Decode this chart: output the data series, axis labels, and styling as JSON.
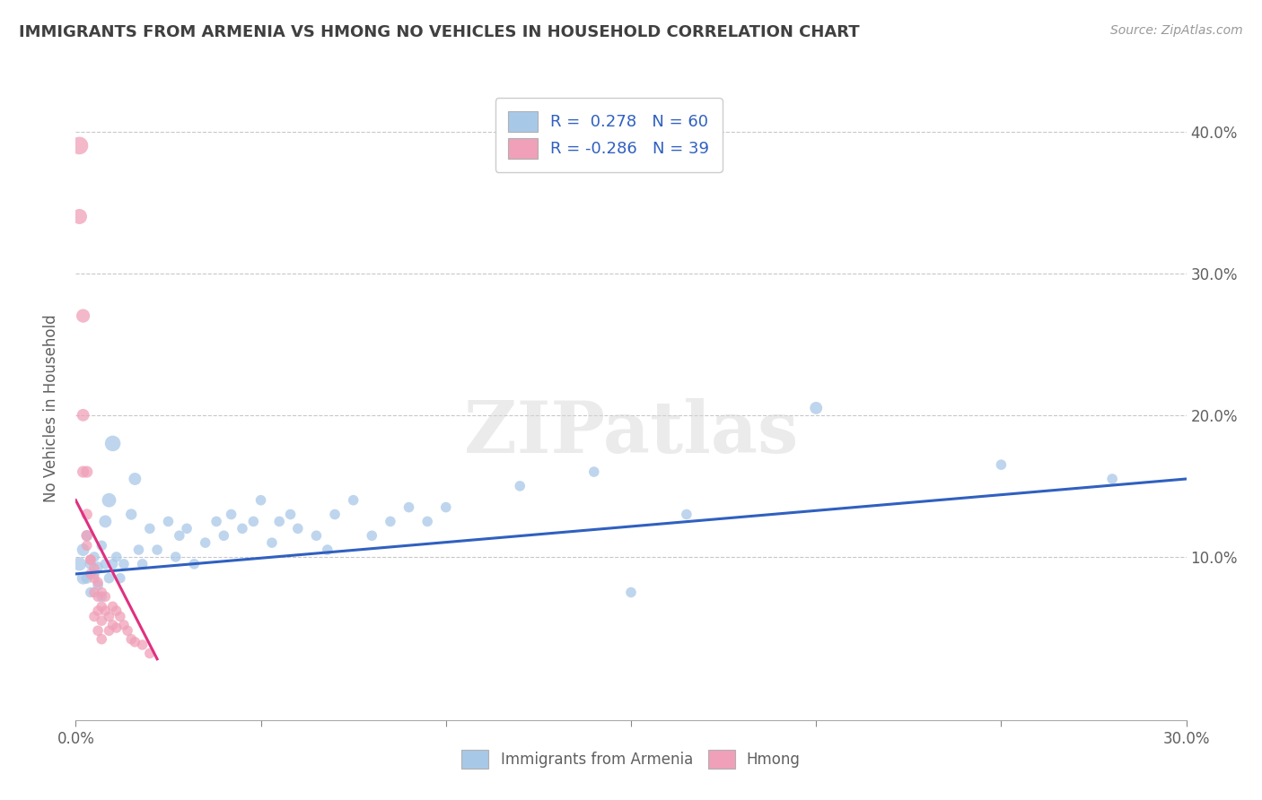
{
  "title": "IMMIGRANTS FROM ARMENIA VS HMONG NO VEHICLES IN HOUSEHOLD CORRELATION CHART",
  "source": "Source: ZipAtlas.com",
  "ylabel": "No Vehicles in Household",
  "legend_blue_label": "Immigrants from Armenia",
  "legend_pink_label": "Hmong",
  "blue_R": 0.278,
  "blue_N": 60,
  "pink_R": -0.286,
  "pink_N": 39,
  "xlim": [
    0.0,
    0.3
  ],
  "ylim": [
    -0.015,
    0.425
  ],
  "blue_scatter": [
    [
      0.001,
      0.095
    ],
    [
      0.002,
      0.085
    ],
    [
      0.002,
      0.105
    ],
    [
      0.003,
      0.115
    ],
    [
      0.003,
      0.085
    ],
    [
      0.004,
      0.095
    ],
    [
      0.004,
      0.075
    ],
    [
      0.005,
      0.088
    ],
    [
      0.005,
      0.1
    ],
    [
      0.006,
      0.093
    ],
    [
      0.006,
      0.08
    ],
    [
      0.007,
      0.108
    ],
    [
      0.007,
      0.072
    ],
    [
      0.008,
      0.095
    ],
    [
      0.008,
      0.125
    ],
    [
      0.009,
      0.085
    ],
    [
      0.009,
      0.14
    ],
    [
      0.01,
      0.095
    ],
    [
      0.01,
      0.18
    ],
    [
      0.011,
      0.1
    ],
    [
      0.012,
      0.085
    ],
    [
      0.013,
      0.095
    ],
    [
      0.015,
      0.13
    ],
    [
      0.016,
      0.155
    ],
    [
      0.017,
      0.105
    ],
    [
      0.018,
      0.095
    ],
    [
      0.02,
      0.12
    ],
    [
      0.022,
      0.105
    ],
    [
      0.025,
      0.125
    ],
    [
      0.027,
      0.1
    ],
    [
      0.028,
      0.115
    ],
    [
      0.03,
      0.12
    ],
    [
      0.032,
      0.095
    ],
    [
      0.035,
      0.11
    ],
    [
      0.038,
      0.125
    ],
    [
      0.04,
      0.115
    ],
    [
      0.042,
      0.13
    ],
    [
      0.045,
      0.12
    ],
    [
      0.048,
      0.125
    ],
    [
      0.05,
      0.14
    ],
    [
      0.053,
      0.11
    ],
    [
      0.055,
      0.125
    ],
    [
      0.058,
      0.13
    ],
    [
      0.06,
      0.12
    ],
    [
      0.065,
      0.115
    ],
    [
      0.068,
      0.105
    ],
    [
      0.07,
      0.13
    ],
    [
      0.075,
      0.14
    ],
    [
      0.08,
      0.115
    ],
    [
      0.085,
      0.125
    ],
    [
      0.09,
      0.135
    ],
    [
      0.095,
      0.125
    ],
    [
      0.1,
      0.135
    ],
    [
      0.12,
      0.15
    ],
    [
      0.14,
      0.16
    ],
    [
      0.15,
      0.075
    ],
    [
      0.165,
      0.13
    ],
    [
      0.2,
      0.205
    ],
    [
      0.25,
      0.165
    ],
    [
      0.28,
      0.155
    ]
  ],
  "blue_sizes": [
    120,
    100,
    100,
    80,
    80,
    80,
    70,
    70,
    70,
    70,
    70,
    70,
    70,
    70,
    100,
    70,
    130,
    70,
    160,
    70,
    70,
    70,
    80,
    100,
    70,
    70,
    70,
    70,
    70,
    70,
    70,
    70,
    70,
    70,
    70,
    70,
    70,
    70,
    70,
    70,
    70,
    70,
    70,
    70,
    70,
    70,
    70,
    70,
    70,
    70,
    70,
    70,
    70,
    70,
    70,
    70,
    70,
    100,
    70,
    70
  ],
  "pink_scatter": [
    [
      0.001,
      0.39
    ],
    [
      0.001,
      0.34
    ],
    [
      0.002,
      0.27
    ],
    [
      0.002,
      0.2
    ],
    [
      0.002,
      0.16
    ],
    [
      0.003,
      0.16
    ],
    [
      0.003,
      0.13
    ],
    [
      0.003,
      0.115
    ],
    [
      0.003,
      0.108
    ],
    [
      0.004,
      0.098
    ],
    [
      0.004,
      0.088
    ],
    [
      0.004,
      0.098
    ],
    [
      0.005,
      0.092
    ],
    [
      0.005,
      0.085
    ],
    [
      0.005,
      0.075
    ],
    [
      0.005,
      0.058
    ],
    [
      0.006,
      0.082
    ],
    [
      0.006,
      0.072
    ],
    [
      0.006,
      0.062
    ],
    [
      0.006,
      0.048
    ],
    [
      0.007,
      0.075
    ],
    [
      0.007,
      0.065
    ],
    [
      0.007,
      0.055
    ],
    [
      0.007,
      0.042
    ],
    [
      0.008,
      0.072
    ],
    [
      0.008,
      0.062
    ],
    [
      0.009,
      0.058
    ],
    [
      0.009,
      0.048
    ],
    [
      0.01,
      0.065
    ],
    [
      0.01,
      0.052
    ],
    [
      0.011,
      0.062
    ],
    [
      0.011,
      0.05
    ],
    [
      0.012,
      0.058
    ],
    [
      0.013,
      0.052
    ],
    [
      0.014,
      0.048
    ],
    [
      0.015,
      0.042
    ],
    [
      0.016,
      0.04
    ],
    [
      0.018,
      0.038
    ],
    [
      0.02,
      0.032
    ]
  ],
  "pink_sizes": [
    200,
    150,
    120,
    100,
    90,
    90,
    80,
    80,
    70,
    70,
    70,
    70,
    70,
    70,
    70,
    70,
    70,
    70,
    70,
    70,
    70,
    70,
    70,
    70,
    70,
    70,
    70,
    70,
    70,
    70,
    70,
    70,
    70,
    70,
    70,
    70,
    70,
    70,
    70
  ],
  "blue_color": "#a8c8e8",
  "pink_color": "#f0a0b8",
  "blue_line_color": "#3060c0",
  "pink_line_color": "#e03080",
  "blue_line": [
    [
      0.0,
      0.088
    ],
    [
      0.3,
      0.155
    ]
  ],
  "pink_line": [
    [
      0.0,
      0.14
    ],
    [
      0.022,
      0.028
    ]
  ],
  "watermark_text": "ZIPatlas",
  "background_color": "#ffffff",
  "grid_color": "#c8c8c8",
  "title_color": "#404040",
  "axis_label_color": "#606060",
  "right_yticks": [
    0.1,
    0.2,
    0.3,
    0.4
  ],
  "right_ytick_labels": [
    "10.0%",
    "20.0%",
    "30.0%",
    "40.0%"
  ]
}
